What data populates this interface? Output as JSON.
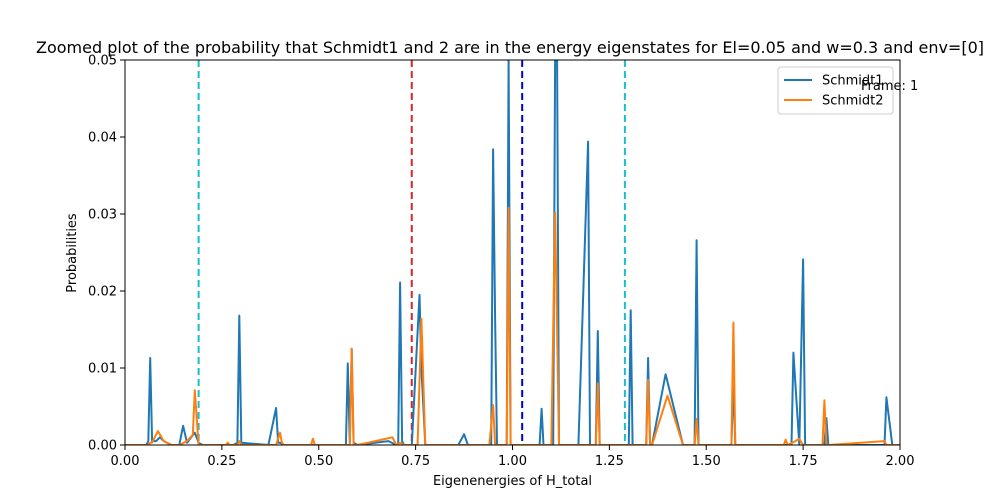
{
  "frame_label": "Frame: 1",
  "chart_data": {
    "type": "line",
    "title": "Zoomed plot of the probability that Schmidt1 and 2 are in the energy eigenstates for El=0.05 and w=0.3 and env=[0]",
    "xlabel": "Eigenenergies of H_total",
    "ylabel": "Probabilities",
    "xlim": [
      0,
      2.0
    ],
    "ylim": [
      0,
      0.05
    ],
    "x_ticks": [
      0,
      0.25,
      0.5,
      0.75,
      1.0,
      1.25,
      1.5,
      1.75,
      2.0
    ],
    "x_tick_labels": [
      "0.00",
      "0.25",
      "0.50",
      "0.75",
      "1.00",
      "1.25",
      "1.50",
      "1.75",
      "2.00"
    ],
    "y_ticks": [
      0,
      0.01,
      0.02,
      0.03,
      0.04,
      0.05
    ],
    "y_tick_labels": [
      "0.00",
      "0.01",
      "0.02",
      "0.03",
      "0.04",
      "0.05"
    ],
    "grid": false,
    "legend_position": "top-right",
    "vertical_lines": [
      {
        "x": 0.19,
        "color": "#17becf"
      },
      {
        "x": 0.74,
        "color": "#d62728"
      },
      {
        "x": 1.025,
        "color": "#0000cc"
      },
      {
        "x": 1.29,
        "color": "#17becf"
      }
    ],
    "series": [
      {
        "name": "Schmidt1",
        "color": "#1f77b4",
        "x": [
          0.0,
          0.055,
          0.06,
          0.065,
          0.07,
          0.08,
          0.09,
          0.1,
          0.12,
          0.14,
          0.15,
          0.16,
          0.18,
          0.19,
          0.2,
          0.26,
          0.28,
          0.29,
          0.295,
          0.3,
          0.37,
          0.39,
          0.395,
          0.4,
          0.41,
          0.42,
          0.57,
          0.575,
          0.58,
          0.585,
          0.59,
          0.6,
          0.68,
          0.7,
          0.705,
          0.71,
          0.715,
          0.72,
          0.74,
          0.76,
          0.765,
          0.775,
          0.78,
          0.86,
          0.875,
          0.885,
          0.93,
          0.945,
          0.95,
          0.955,
          0.96,
          0.975,
          0.985,
          0.99,
          0.995,
          1.0,
          1.07,
          1.075,
          1.08,
          1.09,
          1.1,
          1.105,
          1.11,
          1.115,
          1.12,
          1.17,
          1.195,
          1.2,
          1.21,
          1.215,
          1.22,
          1.225,
          1.23,
          1.26,
          1.29,
          1.3,
          1.305,
          1.31,
          1.33,
          1.34,
          1.345,
          1.35,
          1.355,
          1.36,
          1.395,
          1.44,
          1.46,
          1.47,
          1.475,
          1.48,
          1.56,
          1.565,
          1.57,
          1.575,
          1.58,
          1.7,
          1.705,
          1.71,
          1.72,
          1.725,
          1.74,
          1.75,
          1.755,
          1.76,
          1.8,
          1.805,
          1.81,
          1.815,
          1.82,
          1.95,
          1.96,
          1.965,
          1.98,
          2.0
        ],
        "values": [
          0.0,
          0.0,
          0.0005,
          0.0113,
          0.0005,
          0.0005,
          0.001,
          0.0005,
          0.0,
          0.0,
          0.0025,
          0.0003,
          0.0016,
          0.0003,
          0.0,
          0.0,
          0.0,
          0.0003,
          0.0168,
          0.0003,
          0.0,
          0.0048,
          0.0003,
          0.0003,
          0.0,
          0.0,
          0.0,
          0.0106,
          0.0003,
          0.0125,
          0.0003,
          0.0,
          0.0005,
          0.0,
          0.0,
          0.0211,
          0.0005,
          0.0,
          0.0,
          0.0195,
          0.01,
          0.0,
          0.0,
          0.0,
          0.0014,
          0.0,
          0.0,
          0.0,
          0.0384,
          0.0165,
          0.0,
          0.0,
          0.0,
          0.05,
          0.0,
          0.0,
          0.0,
          0.0047,
          0.0,
          0.0,
          0.0,
          0.0,
          0.05,
          0.05,
          0.0,
          0.0,
          0.0394,
          0.0,
          0.0,
          0.0,
          0.0148,
          0.0,
          0.0,
          0.0,
          0.0,
          0.0,
          0.0175,
          0.0,
          0.0,
          0.0,
          0.0,
          0.0113,
          0.0,
          0.0,
          0.0092,
          0.0,
          0.0,
          0.0,
          0.0266,
          0.0,
          0.0,
          0.0,
          0.0081,
          0.0,
          0.0,
          0.0,
          0.0,
          0.0,
          0.0,
          0.012,
          0.0,
          0.0241,
          0.0,
          0.0,
          0.0,
          0.0,
          0.0035,
          0.0,
          0.0,
          0.0,
          0.0,
          0.0062,
          0.0,
          0.0
        ]
      },
      {
        "name": "Schmidt2",
        "color": "#ff7f0e",
        "x": [
          0.0,
          0.06,
          0.065,
          0.07,
          0.085,
          0.1,
          0.12,
          0.14,
          0.16,
          0.175,
          0.18,
          0.19,
          0.2,
          0.26,
          0.265,
          0.27,
          0.29,
          0.295,
          0.3,
          0.39,
          0.4,
          0.405,
          0.41,
          0.42,
          0.48,
          0.485,
          0.49,
          0.575,
          0.58,
          0.585,
          0.59,
          0.6,
          0.69,
          0.7,
          0.71,
          0.72,
          0.755,
          0.765,
          0.775,
          0.78,
          0.94,
          0.95,
          0.955,
          0.96,
          0.975,
          0.985,
          0.99,
          0.995,
          1.0,
          1.1,
          1.11,
          1.12,
          1.21,
          1.215,
          1.22,
          1.225,
          1.23,
          1.3,
          1.305,
          1.34,
          1.345,
          1.35,
          1.355,
          1.36,
          1.4,
          1.44,
          1.47,
          1.475,
          1.48,
          1.56,
          1.565,
          1.57,
          1.575,
          1.58,
          1.7,
          1.705,
          1.71,
          1.73,
          1.74,
          1.75,
          1.755,
          1.8,
          1.805,
          1.81,
          1.815,
          1.96,
          1.965,
          1.98,
          2.0
        ],
        "values": [
          0.0,
          0.0,
          0.0003,
          0.0003,
          0.0018,
          0.0005,
          0.0,
          0.0,
          0.0005,
          0.0013,
          0.0071,
          0.0,
          0.0,
          0.0,
          0.0003,
          0.0,
          0.0,
          0.0005,
          0.0,
          0.0,
          0.0016,
          0.0003,
          0.0,
          0.0,
          0.0,
          0.0008,
          0.0,
          0.0,
          0.0,
          0.0125,
          0.0,
          0.0,
          0.001,
          0.0,
          0.0003,
          0.0,
          0.0,
          0.0164,
          0.0,
          0.0,
          0.0,
          0.0052,
          0.0,
          0.0,
          0.0,
          0.0,
          0.0308,
          0.0,
          0.0,
          0.0,
          0.0302,
          0.0,
          0.0,
          0.0,
          0.008,
          0.0,
          0.0,
          0.0,
          0.0,
          0.0,
          0.0,
          0.0085,
          0.0,
          0.0,
          0.0064,
          0.0,
          0.0,
          0.0034,
          0.0,
          0.0,
          0.0,
          0.0159,
          0.0,
          0.0,
          0.0,
          0.0007,
          0.0,
          0.0005,
          0.0008,
          0.0,
          0.0,
          0.0,
          0.0058,
          0.0,
          0.0,
          0.0005,
          0.0,
          0.0,
          0.0
        ]
      }
    ]
  }
}
